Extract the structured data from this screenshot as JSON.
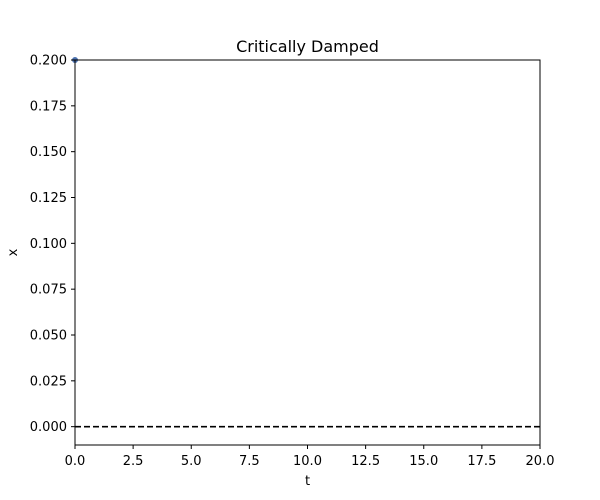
{
  "chart_data": {
    "type": "line",
    "title": "Critically Damped",
    "xlabel": "t",
    "ylabel": "x",
    "xlim": [
      0.0,
      20.0
    ],
    "ylim": [
      -0.01,
      0.2
    ],
    "xticks": [
      "0.0",
      "2.5",
      "5.0",
      "7.5",
      "10.0",
      "12.5",
      "15.0",
      "17.5",
      "20.0"
    ],
    "xtick_values": [
      0.0,
      2.5,
      5.0,
      7.5,
      10.0,
      12.5,
      15.0,
      17.5,
      20.0
    ],
    "yticks": [
      "0.000",
      "0.025",
      "0.050",
      "0.075",
      "0.100",
      "0.125",
      "0.150",
      "0.175",
      "0.200"
    ],
    "ytick_values": [
      0.0,
      0.025,
      0.05,
      0.075,
      0.1,
      0.125,
      0.15,
      0.175,
      0.2
    ],
    "grid": false,
    "reference_line": {
      "y": 0.0,
      "style": "dashed",
      "color": "#000000"
    },
    "series": [
      {
        "color": "#4c72b0",
        "points": [
          {
            "x": 0.0,
            "y": 0.2
          }
        ]
      }
    ]
  }
}
